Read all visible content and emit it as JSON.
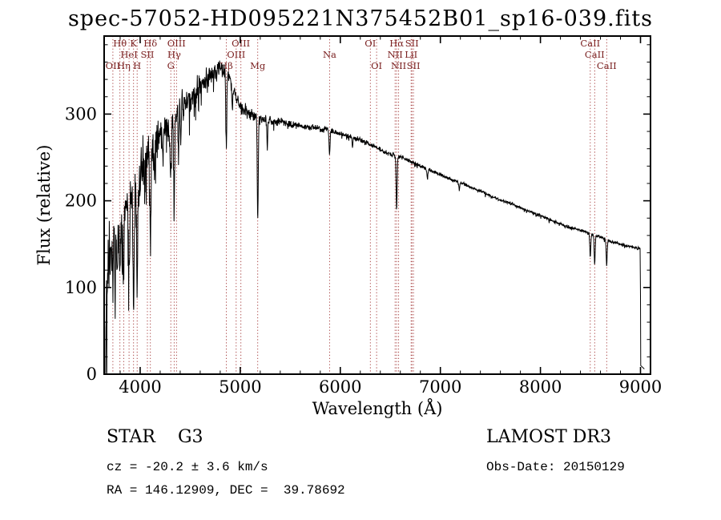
{
  "chart_data": {
    "type": "line",
    "title": "spec-57052-HD095221N375452B01_sp16-039.fits",
    "xlabel": "Wavelength (Å)",
    "ylabel": "Flux (relative)",
    "xlim": [
      3640,
      9100
    ],
    "ylim": [
      0,
      390
    ],
    "xticks": [
      4000,
      5000,
      6000,
      7000,
      8000,
      9000
    ],
    "x_minor_step": 200,
    "yticks": [
      0,
      100,
      200,
      300
    ],
    "y_minor_step": 20,
    "grid": false,
    "series": [
      {
        "name": "spectrum",
        "color": "#000000",
        "wl_start": 3655,
        "wl_end": 9038,
        "continuum_points": [
          [
            3660,
            60
          ],
          [
            3680,
            122
          ],
          [
            3700,
            145
          ],
          [
            3750,
            162
          ],
          [
            3800,
            172
          ],
          [
            3850,
            190
          ],
          [
            3900,
            208
          ],
          [
            3950,
            222
          ],
          [
            4000,
            235
          ],
          [
            4060,
            250
          ],
          [
            4120,
            261
          ],
          [
            4180,
            272
          ],
          [
            4240,
            283
          ],
          [
            4300,
            293
          ],
          [
            4360,
            301
          ],
          [
            4420,
            309
          ],
          [
            4480,
            317
          ],
          [
            4540,
            325
          ],
          [
            4600,
            333
          ],
          [
            4660,
            340
          ],
          [
            4720,
            346
          ],
          [
            4780,
            352
          ],
          [
            4820,
            353
          ],
          [
            4860,
            348
          ],
          [
            4900,
            337
          ],
          [
            4950,
            322
          ],
          [
            5000,
            308
          ],
          [
            5060,
            303
          ],
          [
            5120,
            300
          ],
          [
            5200,
            295
          ],
          [
            5300,
            292
          ],
          [
            5400,
            291
          ],
          [
            5500,
            288
          ],
          [
            5600,
            286
          ],
          [
            5700,
            284
          ],
          [
            5800,
            283
          ],
          [
            5900,
            281
          ],
          [
            6000,
            277
          ],
          [
            6100,
            274
          ],
          [
            6200,
            270
          ],
          [
            6300,
            265
          ],
          [
            6400,
            259
          ],
          [
            6500,
            254
          ],
          [
            6600,
            251
          ],
          [
            6700,
            246
          ],
          [
            6800,
            240
          ],
          [
            6900,
            235
          ],
          [
            7000,
            230
          ],
          [
            7100,
            225
          ],
          [
            7200,
            221
          ],
          [
            7300,
            216
          ],
          [
            7400,
            211
          ],
          [
            7500,
            206
          ],
          [
            7600,
            201
          ],
          [
            7700,
            197
          ],
          [
            7800,
            192
          ],
          [
            7900,
            187
          ],
          [
            8000,
            183
          ],
          [
            8100,
            178
          ],
          [
            8200,
            173
          ],
          [
            8300,
            169
          ],
          [
            8400,
            166
          ],
          [
            8500,
            162
          ],
          [
            8600,
            158
          ],
          [
            8700,
            153
          ],
          [
            8800,
            150
          ],
          [
            8900,
            147
          ],
          [
            8990,
            145
          ]
        ],
        "noise_amplitude": [
          [
            3660,
            55
          ],
          [
            3720,
            52
          ],
          [
            3780,
            48
          ],
          [
            3850,
            45
          ],
          [
            3920,
            42
          ],
          [
            4000,
            38
          ],
          [
            4080,
            34
          ],
          [
            4160,
            30
          ],
          [
            4250,
            27
          ],
          [
            4350,
            24
          ],
          [
            4450,
            22
          ],
          [
            4550,
            20
          ],
          [
            4650,
            19
          ],
          [
            4750,
            18
          ],
          [
            4850,
            16
          ],
          [
            4950,
            13
          ],
          [
            5050,
            11
          ],
          [
            5150,
            9
          ],
          [
            5250,
            8
          ],
          [
            5400,
            7
          ],
          [
            5600,
            6
          ],
          [
            5800,
            5
          ],
          [
            6000,
            4.5
          ],
          [
            6300,
            4
          ],
          [
            6600,
            3.5
          ],
          [
            7000,
            3
          ],
          [
            7500,
            2.8
          ],
          [
            8000,
            2.5
          ],
          [
            8500,
            2.5
          ],
          [
            9000,
            2.5
          ]
        ],
        "absorption_lines": [
          [
            3727,
            55,
            4
          ],
          [
            3750,
            50,
            4
          ],
          [
            3771,
            55,
            4
          ],
          [
            3798,
            70,
            4
          ],
          [
            3820,
            40,
            4
          ],
          [
            3835,
            75,
            4
          ],
          [
            3889,
            85,
            5
          ],
          [
            3934,
            135,
            6
          ],
          [
            3970,
            125,
            6
          ],
          [
            4045,
            35,
            4
          ],
          [
            4102,
            105,
            5
          ],
          [
            4144,
            40,
            4
          ],
          [
            4227,
            45,
            4
          ],
          [
            4306,
            65,
            8
          ],
          [
            4340,
            100,
            5
          ],
          [
            4383,
            55,
            4
          ],
          [
            4405,
            40,
            4
          ],
          [
            4861,
            85,
            5
          ],
          [
            4920,
            30,
            4
          ],
          [
            5175,
            115,
            5
          ],
          [
            5270,
            35,
            4
          ],
          [
            5893,
            28,
            5
          ],
          [
            6122,
            12,
            4
          ],
          [
            6563,
            62,
            5
          ],
          [
            6870,
            12,
            5
          ],
          [
            7190,
            8,
            5
          ],
          [
            8498,
            26,
            5
          ],
          [
            8542,
            33,
            5
          ],
          [
            8662,
            30,
            5
          ]
        ],
        "edge_points": [
          [
            8996,
            145
          ],
          [
            9000,
            90
          ],
          [
            9002,
            10
          ],
          [
            9038,
            6
          ]
        ]
      }
    ],
    "line_markers": {
      "line_color": "#a23535",
      "label_color": "#7a2020",
      "items": [
        {
          "label": "Hθ",
          "wavelength": 3798,
          "row": 1
        },
        {
          "label": "K",
          "wavelength": 3934,
          "row": 1
        },
        {
          "label": "Hδ",
          "wavelength": 4102,
          "row": 1
        },
        {
          "label": "OIII",
          "wavelength": 4363,
          "row": 1
        },
        {
          "label": "OIII",
          "wavelength": 5007,
          "row": 1
        },
        {
          "label": "OI",
          "wavelength": 6300,
          "row": 1
        },
        {
          "label": "Hα",
          "wavelength": 6563,
          "row": 1
        },
        {
          "label": "SII",
          "wavelength": 6716,
          "row": 1
        },
        {
          "label": "CaII",
          "wavelength": 8498,
          "row": 1
        },
        {
          "label": "HeI",
          "wavelength": 3889,
          "row": 2
        },
        {
          "label": "SII",
          "wavelength": 4072,
          "row": 2
        },
        {
          "label": "Hγ",
          "wavelength": 4340,
          "row": 2
        },
        {
          "label": "OIII",
          "wavelength": 4959,
          "row": 2
        },
        {
          "label": "Na",
          "wavelength": 5893,
          "row": 2
        },
        {
          "label": "NII",
          "wavelength": 6548,
          "row": 2
        },
        {
          "label": "LiI",
          "wavelength": 6708,
          "row": 2
        },
        {
          "label": "CaII",
          "wavelength": 8542,
          "row": 2
        },
        {
          "label": "OII",
          "wavelength": 3727,
          "row": 3
        },
        {
          "label": "Hη",
          "wavelength": 3835,
          "row": 3
        },
        {
          "label": "H",
          "wavelength": 3970,
          "row": 3
        },
        {
          "label": "G",
          "wavelength": 4306,
          "row": 3
        },
        {
          "label": "Hβ",
          "wavelength": 4861,
          "row": 3
        },
        {
          "label": "Mg",
          "wavelength": 5175,
          "row": 3
        },
        {
          "label": "OI",
          "wavelength": 6363,
          "row": 3
        },
        {
          "label": "NII",
          "wavelength": 6583,
          "row": 3
        },
        {
          "label": "SII",
          "wavelength": 6731,
          "row": 3
        },
        {
          "label": "CaII",
          "wavelength": 8662,
          "row": 3
        }
      ]
    }
  },
  "annotations": {
    "class_label": "STAR    G3",
    "survey": "LAMOST DR3",
    "cz": "cz = -20.2 ± 3.6 km/s",
    "obs_date": "Obs-Date: 20150129",
    "ra_dec": "RA = 146.12909, DEC =  39.78692"
  }
}
